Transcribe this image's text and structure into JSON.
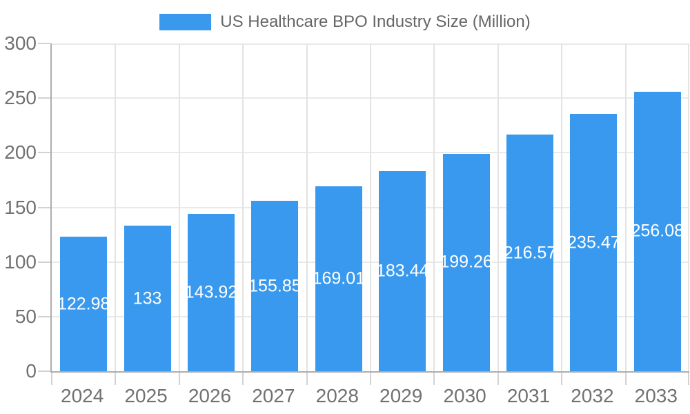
{
  "chart_data": {
    "type": "bar",
    "title": "US Healthcare BPO Industry Size (Million)",
    "legend": {
      "label": "US Healthcare BPO Industry Size (Million)",
      "position": "top-center",
      "swatch": "rectangle"
    },
    "categories": [
      "2024",
      "2025",
      "2026",
      "2027",
      "2028",
      "2029",
      "2030",
      "2031",
      "2032",
      "2033"
    ],
    "series": [
      {
        "name": "US Healthcare BPO Industry Size (Million)",
        "values": [
          122.98,
          133,
          143.92,
          155.85,
          169.01,
          183.44,
          199.26,
          216.57,
          235.47,
          256.08
        ]
      }
    ],
    "value_labels": [
      "122.98",
      "133",
      "143.92",
      "155.85",
      "169.01",
      "183.44",
      "199.26",
      "216.57",
      "235.47",
      "256.08"
    ],
    "value_label_position": "center-inside-bar",
    "xlabel": "",
    "ylabel": "",
    "ylim": [
      0,
      300
    ],
    "yticks": [
      0,
      50,
      100,
      150,
      200,
      250,
      300
    ],
    "grid": "on",
    "colors": {
      "bar": "#3999EE",
      "bar_label_text": "#FFFFFF",
      "h_gridline": "#E9E9E9",
      "v_gridline": "#E3E3E3",
      "axis_zero_line": "#ADADAD",
      "tick_mark": "#D2D2D2",
      "tick_text": "#717171",
      "legend_text": "#666666",
      "background": "#FFFFFF"
    }
  }
}
